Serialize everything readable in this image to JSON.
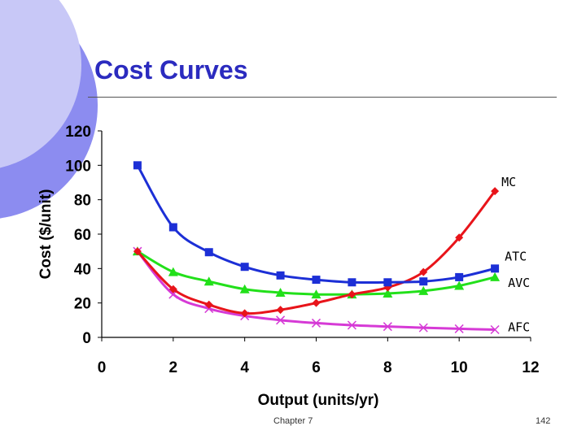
{
  "slide": {
    "title": "Cost Curves",
    "footer_left": "Chapter 7",
    "footer_right": "142"
  },
  "chart_data": {
    "type": "line",
    "title": "",
    "xlabel": "Output (units/yr)",
    "ylabel": "Cost ($/unit)",
    "xlim": [
      0,
      12
    ],
    "ylim": [
      0,
      120
    ],
    "x_ticks": [
      0,
      2,
      4,
      6,
      8,
      10,
      12
    ],
    "y_ticks": [
      0,
      20,
      40,
      60,
      80,
      100,
      120
    ],
    "grid": false,
    "legend": "curve labels at right ends",
    "x": [
      1,
      2,
      3,
      4,
      5,
      6,
      7,
      8,
      9,
      10,
      11
    ],
    "series": [
      {
        "name": "MC",
        "color": "#e8141a",
        "marker": "diamond",
        "values": [
          50,
          28,
          19,
          14,
          16,
          20,
          25,
          29,
          38,
          58,
          85
        ]
      },
      {
        "name": "ATC",
        "color": "#1c2fd6",
        "marker": "square",
        "values": [
          100,
          64,
          49.5,
          41,
          36,
          33.5,
          32,
          32,
          32.5,
          35,
          40
        ]
      },
      {
        "name": "AVC",
        "color": "#22e01a",
        "marker": "triangle",
        "values": [
          50,
          38,
          32.5,
          28,
          26,
          25,
          25,
          25.5,
          27,
          30,
          35
        ]
      },
      {
        "name": "AFC",
        "color": "#d63ad6",
        "marker": "x",
        "values": [
          50,
          25,
          16.7,
          12.5,
          10,
          8.3,
          7.1,
          6.3,
          5.6,
          5,
          4.5
        ]
      }
    ]
  }
}
